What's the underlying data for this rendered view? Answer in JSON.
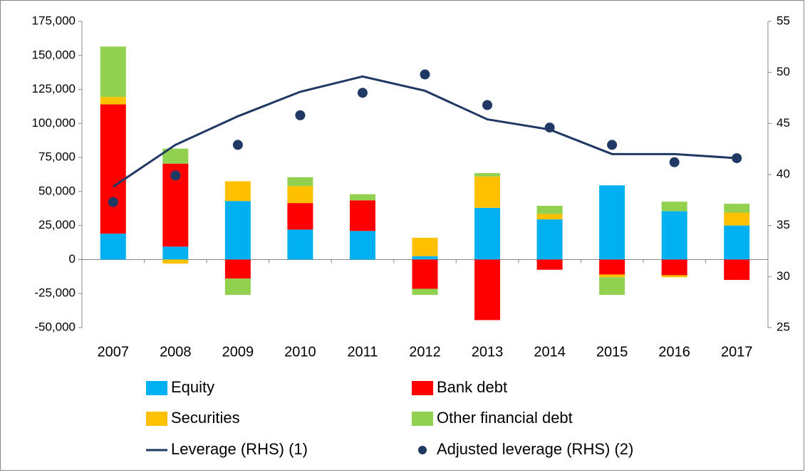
{
  "chart_data": {
    "type": "bar",
    "stacked": true,
    "categories": [
      "2007",
      "2008",
      "2009",
      "2010",
      "2011",
      "2012",
      "2013",
      "2014",
      "2015",
      "2016",
      "2017"
    ],
    "series": [
      {
        "name": "Equity",
        "type": "bar",
        "color": "#00b0f0",
        "values": [
          19000,
          9500,
          43000,
          22000,
          21000,
          2500,
          38000,
          29500,
          54500,
          35500,
          25000
        ]
      },
      {
        "name": "Bank debt",
        "type": "bar",
        "color": "#ff0000",
        "values": [
          95000,
          61000,
          -14000,
          19500,
          22500,
          -21500,
          -44500,
          -7500,
          -11000,
          -11500,
          -15000
        ]
      },
      {
        "name": "Securities",
        "type": "bar",
        "color": "#ffc000",
        "values": [
          5500,
          -3000,
          14500,
          12500,
          0,
          13500,
          23000,
          4000,
          -2000,
          -1500,
          9500
        ]
      },
      {
        "name": "Other financial debt",
        "type": "bar",
        "color": "#92d050",
        "values": [
          37000,
          11000,
          -12000,
          6500,
          4500,
          -4500,
          2500,
          6000,
          -13000,
          7000,
          6500
        ]
      },
      {
        "name": "Leverage (RHS) (1)",
        "type": "line",
        "axis": "y2",
        "color": "#203864",
        "values": [
          38.8,
          42.9,
          45.7,
          48.1,
          49.6,
          48.2,
          45.4,
          44.4,
          42.0,
          42.0,
          41.6
        ]
      },
      {
        "name": "Adjusted leverage (RHS) (2)",
        "type": "scatter",
        "axis": "y2",
        "color": "#203864",
        "values": [
          37.3,
          39.9,
          42.9,
          45.8,
          48.0,
          49.8,
          46.8,
          44.6,
          42.9,
          41.2,
          41.6
        ]
      }
    ],
    "ylim": [
      -50000,
      175000
    ],
    "yticks": [
      {
        "value": -50000,
        "label": "-50,000"
      },
      {
        "value": -25000,
        "label": "-25,000"
      },
      0,
      {
        "value": 25000,
        "label": "25,000"
      },
      {
        "value": 50000,
        "label": "50,000"
      },
      {
        "value": 75000,
        "label": "75,000"
      },
      {
        "value": 100000,
        "label": "100,000"
      },
      {
        "value": 125000,
        "label": "125,000"
      },
      {
        "value": 150000,
        "label": "150,000"
      },
      {
        "value": 175000,
        "label": "175,000"
      }
    ],
    "y2lim": [
      25,
      55
    ],
    "y2ticks": [
      25,
      30,
      35,
      40,
      45,
      50,
      55
    ],
    "legend": "bottom"
  }
}
